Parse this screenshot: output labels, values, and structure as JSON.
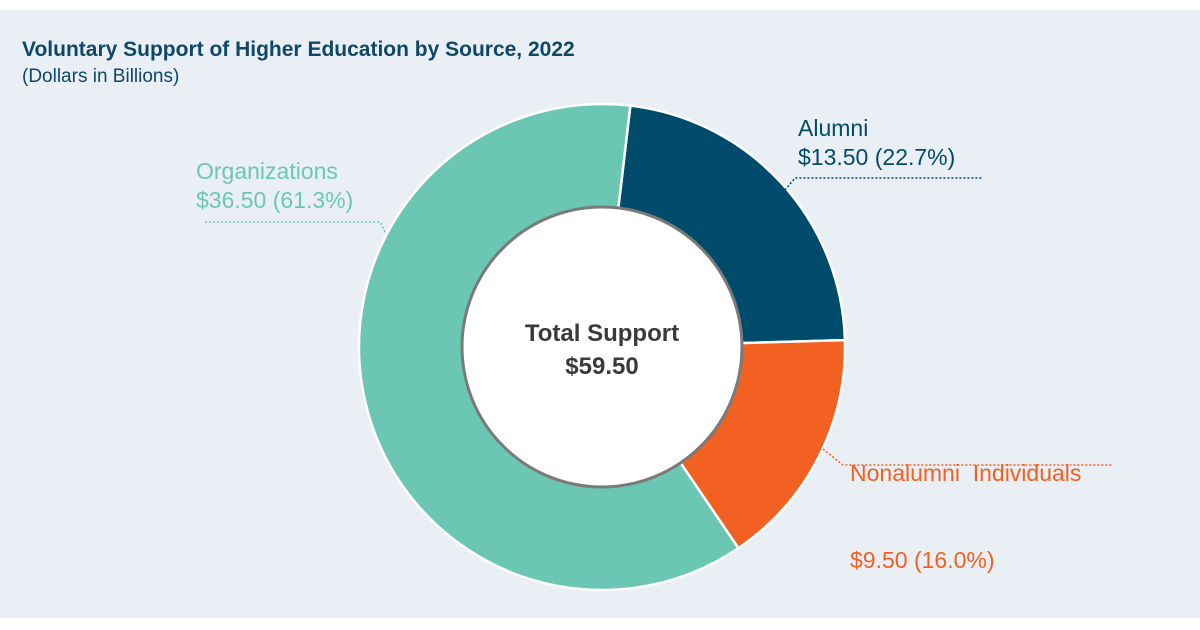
{
  "chart_data": {
    "type": "pie",
    "variant": "donut",
    "title": "Voluntary Support of Higher Education by Source, 2022",
    "subtitle": "(Dollars in Billions)",
    "center_label": {
      "line1": "Total Support",
      "line2": "$59.50"
    },
    "total": 59.5,
    "slices": [
      {
        "name": "Alumni",
        "value": 13.5,
        "percent": 22.7,
        "value_label": "$13.50 (22.7%)",
        "color": "#004b6b"
      },
      {
        "name": "Nonalumni  Individuals",
        "value": 9.5,
        "percent": 16.0,
        "value_label": "$9.50 (16.0%)",
        "color": "#f26122"
      },
      {
        "name": "Organizations",
        "value": 36.5,
        "percent": 61.3,
        "value_label": "$36.50 (61.3%)",
        "color": "#6bc7b4"
      }
    ]
  }
}
